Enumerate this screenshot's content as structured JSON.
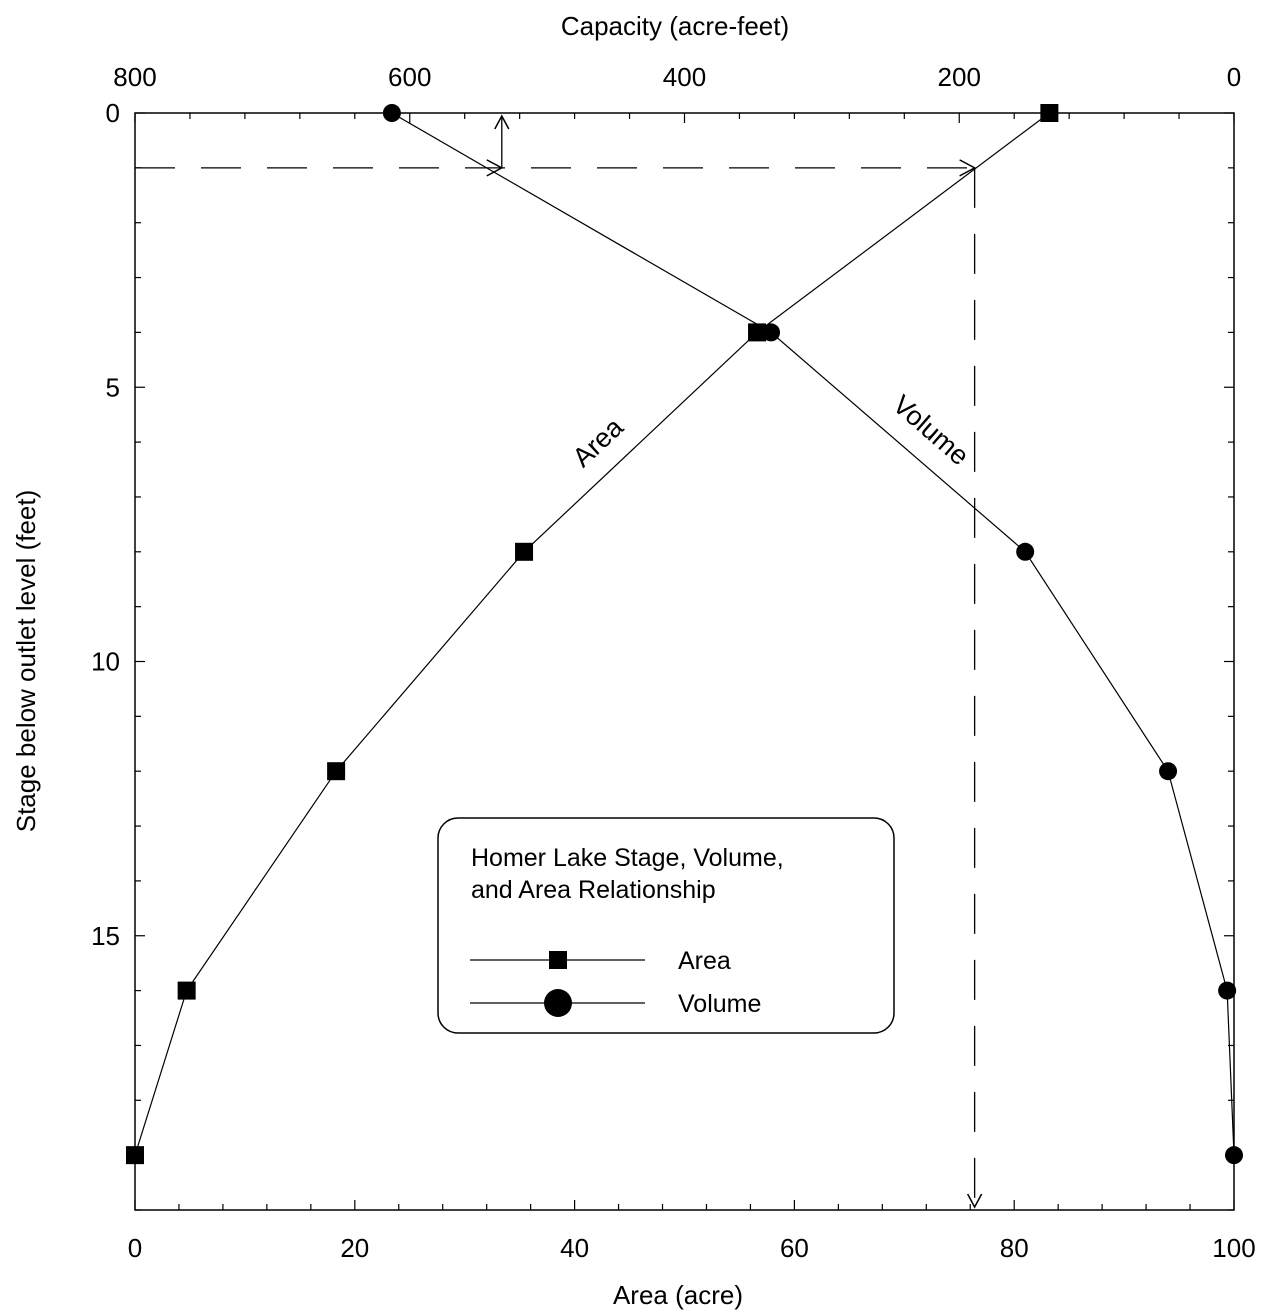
{
  "chart_data": {
    "type": "line",
    "legend": {
      "title_lines": [
        "Homer Lake Stage, Volume,",
        "and Area Relationship"
      ],
      "placement": "center-right",
      "entries": [
        {
          "name": "Area",
          "marker": "square"
        },
        {
          "name": "Volume",
          "marker": "circle"
        }
      ]
    },
    "y_axis": {
      "label": "Stage below outlet level (feet)",
      "range": [
        0,
        20
      ],
      "inverted": true,
      "major_ticks": [
        0,
        5,
        10,
        15
      ],
      "minor_step": 1
    },
    "x_bottom": {
      "label": "Area (acre)",
      "range": [
        0,
        100
      ],
      "major_ticks": [
        0,
        20,
        40,
        60,
        80,
        100
      ],
      "minor_step": 4
    },
    "x_top": {
      "label": "Capacity (acre-feet)",
      "range": [
        800,
        0
      ],
      "major_ticks": [
        800,
        600,
        400,
        200,
        0
      ],
      "minor_step": 40
    },
    "series": [
      {
        "name": "Area",
        "axis": "bottom",
        "marker": "square",
        "points": [
          {
            "stage": 0,
            "value": 83.2
          },
          {
            "stage": 4,
            "value": 56.6
          },
          {
            "stage": 8,
            "value": 35.4
          },
          {
            "stage": 12,
            "value": 18.3
          },
          {
            "stage": 16,
            "value": 4.7
          },
          {
            "stage": 19,
            "value": 0
          }
        ]
      },
      {
        "name": "Volume",
        "axis": "top",
        "marker": "circle",
        "points": [
          {
            "stage": 0,
            "value": 613
          },
          {
            "stage": 4,
            "value": 337
          },
          {
            "stage": 8,
            "value": 152
          },
          {
            "stage": 12,
            "value": 48
          },
          {
            "stage": 16,
            "value": 5
          },
          {
            "stage": 19,
            "value": 0
          }
        ]
      }
    ],
    "annotations": {
      "curve_labels": [
        "Area",
        "Volume"
      ],
      "guide_lines": {
        "stage": 1,
        "volume_value": 533,
        "area_value": 76.4
      }
    }
  }
}
